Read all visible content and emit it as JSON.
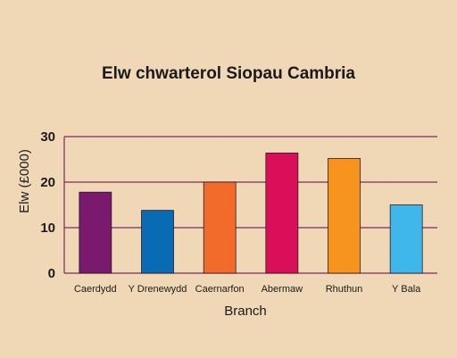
{
  "chart_data": {
    "type": "bar",
    "title": "Elw chwarterol Siopau Cambria",
    "xlabel": "Branch",
    "ylabel": "Elw (£000)",
    "ylim": [
      0,
      30
    ],
    "yticks": [
      0,
      10,
      20,
      30
    ],
    "grid": true,
    "categories": [
      "Caerdydd",
      "Y Drenewydd",
      "Caernarfon",
      "Abermaw",
      "Rhuthun",
      "Y Bala"
    ],
    "values": [
      17.8,
      13.8,
      20.0,
      26.4,
      25.2,
      15.0
    ],
    "colors": [
      "#7a1a6e",
      "#0a6bb5",
      "#f26b2a",
      "#d90f5a",
      "#f7941d",
      "#40b7ea"
    ],
    "background": "#f0d8b6",
    "grid_color": "#7a2a5e"
  }
}
